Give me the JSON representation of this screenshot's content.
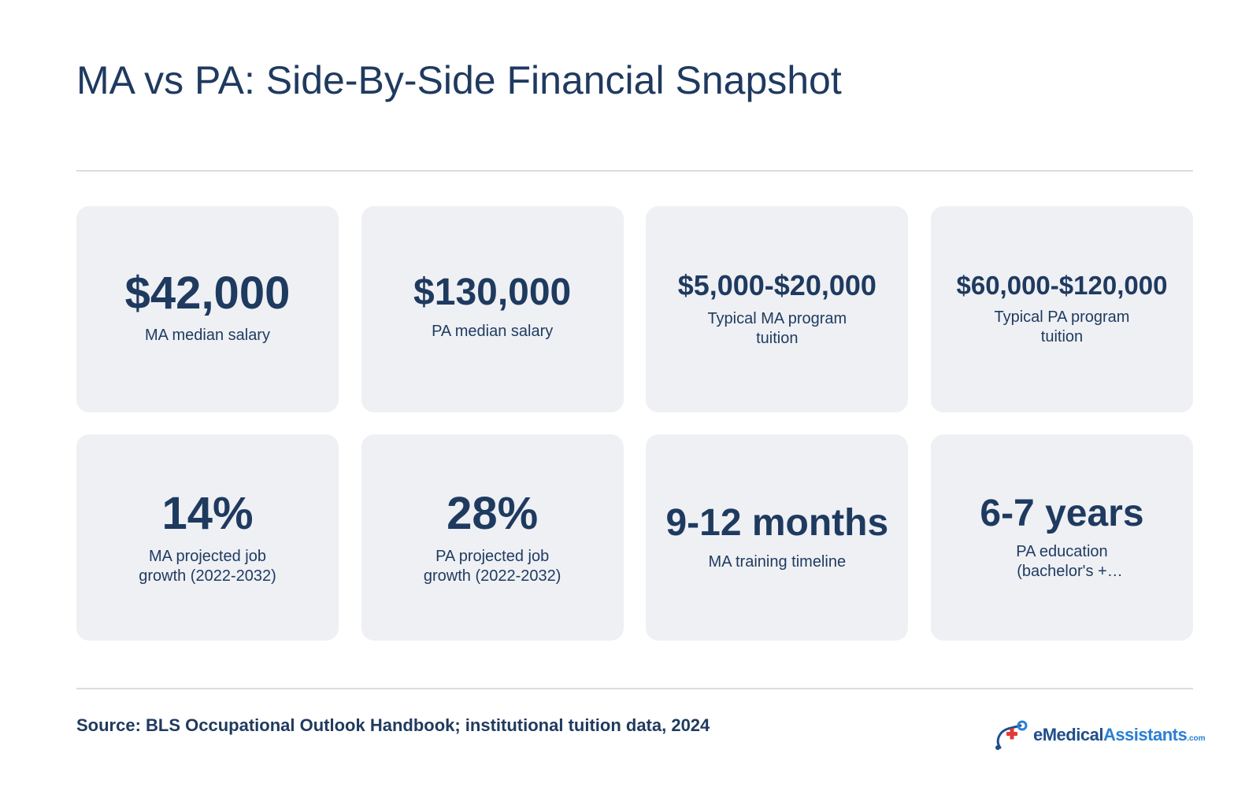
{
  "title": "MA vs PA: Side-By-Side Financial Snapshot",
  "cards": [
    {
      "value": "$42,000",
      "label": "MA median salary"
    },
    {
      "value": "$130,000",
      "label": "PA median salary"
    },
    {
      "value": "$5,000-$20,000",
      "label": "Typical MA program tuition"
    },
    {
      "value": "$60,000-$120,000",
      "label": "Typical PA program tuition"
    },
    {
      "value": "14%",
      "label": "MA projected job growth (2022-2032)"
    },
    {
      "value": "28%",
      "label": "PA projected job growth (2022-2032)"
    },
    {
      "value": "9-12 months",
      "label": "MA training timeline"
    },
    {
      "value": "6-7 years",
      "label": "PA education (bachelor's + master's)"
    }
  ],
  "source": "Source: BLS Occupational Outlook Handbook; institutional tuition data, 2024",
  "logo": {
    "part1": "eMedical",
    "part2": "Assistants",
    "domain": ".com",
    "icon": "medical-cross-logo-icon"
  },
  "colors": {
    "text": "#1f3a5f",
    "card_bg": "#eef0f4",
    "rule": "#d9dce1",
    "logo_red": "#e53935",
    "logo_blue": "#2a7fd4"
  }
}
